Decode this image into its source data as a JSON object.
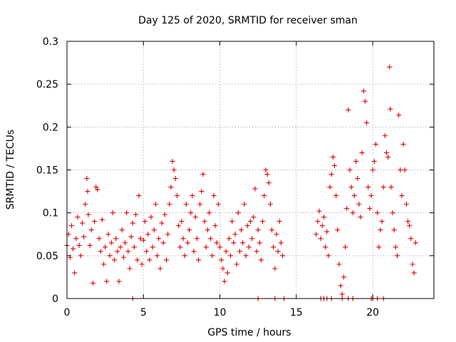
{
  "chart_data": {
    "type": "scatter",
    "title": "Day 125 of 2020, SRMTID for receiver sman",
    "xlabel": "GPS time / hours",
    "ylabel": "SRMTID / TECUs",
    "xlim": [
      0,
      24
    ],
    "ylim": [
      0,
      0.3
    ],
    "xticks": [
      "0",
      "5",
      "10",
      "15",
      "20"
    ],
    "xtick_values": [
      0,
      5,
      10,
      15,
      20
    ],
    "yticks": [
      "0",
      "0.05",
      "0.1",
      "0.15",
      "0.2",
      "0.25",
      "0.3"
    ],
    "ytick_values": [
      0,
      0.05,
      0.1,
      0.15,
      0.2,
      0.25,
      0.3
    ],
    "grid": true,
    "marker": "+",
    "series": [
      {
        "name": "SRMTID",
        "color": "#e00000",
        "points": [
          [
            0.0,
            0.062
          ],
          [
            0.1,
            0.075
          ],
          [
            0.2,
            0.048
          ],
          [
            0.3,
            0.085
          ],
          [
            0.4,
            0.058
          ],
          [
            0.5,
            0.03
          ],
          [
            0.6,
            0.07
          ],
          [
            0.7,
            0.095
          ],
          [
            0.8,
            0.062
          ],
          [
            0.9,
            0.05
          ],
          [
            1.0,
            0.088
          ],
          [
            1.1,
            0.072
          ],
          [
            1.2,
            0.11
          ],
          [
            1.3,
            0.14
          ],
          [
            1.35,
            0.125
          ],
          [
            1.4,
            0.098
          ],
          [
            1.5,
            0.062
          ],
          [
            1.6,
            0.08
          ],
          [
            1.7,
            0.018
          ],
          [
            1.8,
            0.09
          ],
          [
            1.9,
            0.13
          ],
          [
            2.0,
            0.127
          ],
          [
            2.1,
            0.07
          ],
          [
            2.2,
            0.055
          ],
          [
            2.3,
            0.092
          ],
          [
            2.4,
            0.04
          ],
          [
            2.5,
            0.06
          ],
          [
            2.6,
            0.02
          ],
          [
            2.7,
            0.075
          ],
          [
            2.8,
            0.05
          ],
          [
            2.9,
            0.065
          ],
          [
            3.0,
            0.1
          ],
          [
            3.1,
            0.045
          ],
          [
            3.2,
            0.07
          ],
          [
            3.3,
            0.055
          ],
          [
            3.4,
            0.02
          ],
          [
            3.5,
            0.06
          ],
          [
            3.6,
            0.08
          ],
          [
            3.7,
            0.048
          ],
          [
            3.8,
            0.065
          ],
          [
            3.9,
            0.1
          ],
          [
            4.0,
            0.055
          ],
          [
            4.1,
            0.035
          ],
          [
            4.2,
            0.072
          ],
          [
            4.3,
            0.088
          ],
          [
            4.4,
            0.06
          ],
          [
            4.5,
            0.098
          ],
          [
            4.6,
            0.045
          ],
          [
            4.7,
            0.12
          ],
          [
            4.8,
            0.07
          ],
          [
            4.9,
            0.04
          ],
          [
            5.0,
            0.068
          ],
          [
            5.1,
            0.09
          ],
          [
            5.2,
            0.055
          ],
          [
            5.3,
            0.075
          ],
          [
            5.4,
            0.045
          ],
          [
            5.5,
            0.095
          ],
          [
            5.6,
            0.06
          ],
          [
            5.7,
            0.08
          ],
          [
            5.8,
            0.11
          ],
          [
            5.9,
            0.05
          ],
          [
            6.0,
            0.07
          ],
          [
            6.1,
            0.035
          ],
          [
            6.2,
            0.088
          ],
          [
            6.3,
            0.065
          ],
          [
            6.4,
            0.098
          ],
          [
            6.5,
            0.045
          ],
          [
            6.6,
            0.075
          ],
          [
            6.7,
            0.11
          ],
          [
            6.8,
            0.13
          ],
          [
            6.9,
            0.16
          ],
          [
            7.0,
            0.15
          ],
          [
            7.1,
            0.14
          ],
          [
            7.2,
            0.12
          ],
          [
            7.3,
            0.085
          ],
          [
            7.4,
            0.06
          ],
          [
            7.5,
            0.09
          ],
          [
            7.6,
            0.07
          ],
          [
            7.7,
            0.05
          ],
          [
            7.8,
            0.11
          ],
          [
            7.9,
            0.065
          ],
          [
            8.0,
            0.08
          ],
          [
            8.1,
            0.1
          ],
          [
            8.2,
            0.12
          ],
          [
            8.3,
            0.055
          ],
          [
            8.4,
            0.095
          ],
          [
            8.5,
            0.07
          ],
          [
            8.6,
            0.045
          ],
          [
            8.7,
            0.11
          ],
          [
            8.8,
            0.125
          ],
          [
            8.9,
            0.145
          ],
          [
            9.0,
            0.09
          ],
          [
            9.1,
            0.06
          ],
          [
            9.2,
            0.08
          ],
          [
            9.3,
            0.1
          ],
          [
            9.4,
            0.07
          ],
          [
            9.5,
            0.05
          ],
          [
            9.6,
            0.12
          ],
          [
            9.7,
            0.085
          ],
          [
            9.8,
            0.065
          ],
          [
            9.9,
            0.11
          ],
          [
            10.0,
            0.06
          ],
          [
            10.1,
            0.045
          ],
          [
            10.2,
            0.035
          ],
          [
            10.3,
            0.02
          ],
          [
            10.4,
            0.055
          ],
          [
            10.5,
            0.03
          ],
          [
            10.6,
            0.07
          ],
          [
            10.7,
            0.05
          ],
          [
            10.8,
            0.09
          ],
          [
            10.9,
            0.065
          ],
          [
            11.0,
            0.075
          ],
          [
            11.1,
            0.04
          ],
          [
            11.2,
            0.1
          ],
          [
            11.3,
            0.055
          ],
          [
            11.4,
            0.08
          ],
          [
            11.5,
            0.065
          ],
          [
            11.6,
            0.11
          ],
          [
            11.7,
            0.05
          ],
          [
            11.8,
            0.085
          ],
          [
            11.9,
            0.06
          ],
          [
            12.0,
            0.09
          ],
          [
            12.1,
            0.07
          ],
          [
            12.2,
            0.095
          ],
          [
            12.3,
            0.128
          ],
          [
            12.4,
            0.055
          ],
          [
            12.5,
            0.08
          ],
          [
            12.6,
            0.065
          ],
          [
            12.7,
            0.045
          ],
          [
            12.8,
            0.09
          ],
          [
            12.9,
            0.12
          ],
          [
            13.0,
            0.15
          ],
          [
            13.1,
            0.145
          ],
          [
            13.2,
            0.135
          ],
          [
            13.3,
            0.11
          ],
          [
            13.4,
            0.08
          ],
          [
            13.5,
            0.06
          ],
          [
            13.6,
            0.035
          ],
          [
            13.7,
            0.075
          ],
          [
            13.8,
            0.055
          ],
          [
            13.9,
            0.09
          ],
          [
            14.0,
            0.065
          ],
          [
            14.1,
            0.05
          ],
          [
            16.3,
            0.075
          ],
          [
            16.4,
            0.09
          ],
          [
            16.5,
            0.102
          ],
          [
            16.6,
            0.07
          ],
          [
            16.7,
            0.085
          ],
          [
            16.8,
            0.095
          ],
          [
            16.9,
            0.06
          ],
          [
            17.0,
            0.078
          ],
          [
            17.1,
            0.05
          ],
          [
            17.2,
            0.13
          ],
          [
            17.3,
            0.145
          ],
          [
            17.4,
            0.165
          ],
          [
            17.5,
            0.155
          ],
          [
            17.6,
            0.12
          ],
          [
            17.7,
            0.08
          ],
          [
            17.8,
            0.04
          ],
          [
            17.9,
            0.015
          ],
          [
            18.0,
            0.005
          ],
          [
            18.1,
            0.025
          ],
          [
            18.2,
            0.06
          ],
          [
            18.3,
            0.105
          ],
          [
            18.4,
            0.22
          ],
          [
            18.5,
            0.15
          ],
          [
            18.6,
            0.13
          ],
          [
            18.7,
            0.1
          ],
          [
            18.8,
            0.12
          ],
          [
            18.9,
            0.16
          ],
          [
            19.0,
            0.14
          ],
          [
            19.1,
            0.11
          ],
          [
            19.2,
            0.095
          ],
          [
            19.3,
            0.17
          ],
          [
            19.4,
            0.242
          ],
          [
            19.5,
            0.23
          ],
          [
            19.6,
            0.205
          ],
          [
            19.7,
            0.13
          ],
          [
            19.8,
            0.105
          ],
          [
            19.9,
            0.12
          ],
          [
            20.0,
            0.15
          ],
          [
            20.1,
            0.16
          ],
          [
            20.2,
            0.18
          ],
          [
            20.3,
            0.1
          ],
          [
            20.4,
            0.06
          ],
          [
            20.5,
            0.08
          ],
          [
            20.6,
            0.09
          ],
          [
            20.7,
            0.13
          ],
          [
            20.8,
            0.19
          ],
          [
            20.9,
            0.17
          ],
          [
            21.0,
            0.165
          ],
          [
            21.1,
            0.27
          ],
          [
            21.15,
            0.221
          ],
          [
            21.2,
            0.13
          ],
          [
            21.3,
            0.1
          ],
          [
            21.4,
            0.08
          ],
          [
            21.5,
            0.06
          ],
          [
            21.6,
            0.05
          ],
          [
            21.7,
            0.214
          ],
          [
            21.8,
            0.15
          ],
          [
            21.9,
            0.12
          ],
          [
            22.0,
            0.18
          ],
          [
            22.1,
            0.15
          ],
          [
            22.2,
            0.11
          ],
          [
            22.3,
            0.09
          ],
          [
            22.4,
            0.085
          ],
          [
            22.5,
            0.07
          ],
          [
            22.6,
            0.04
          ],
          [
            22.7,
            0.03
          ],
          [
            22.8,
            0.065
          ],
          [
            16.6,
            0.0
          ],
          [
            16.8,
            0.0
          ],
          [
            17.0,
            0.0
          ],
          [
            17.3,
            0.0
          ],
          [
            18.0,
            0.0
          ],
          [
            18.4,
            0.0
          ],
          [
            18.7,
            0.0
          ],
          [
            19.9,
            0.0
          ],
          [
            20.0,
            0.0
          ],
          [
            20.3,
            0.0
          ],
          [
            20.7,
            0.0
          ],
          [
            4.3,
            0.0
          ],
          [
            12.5,
            0.0
          ],
          [
            13.6,
            0.0
          ],
          [
            14.2,
            0.0
          ]
        ]
      }
    ]
  },
  "colors": {
    "marker": "#e00000",
    "grid": "#a0a0a0",
    "axis": "#000000",
    "background": "#ffffff"
  }
}
